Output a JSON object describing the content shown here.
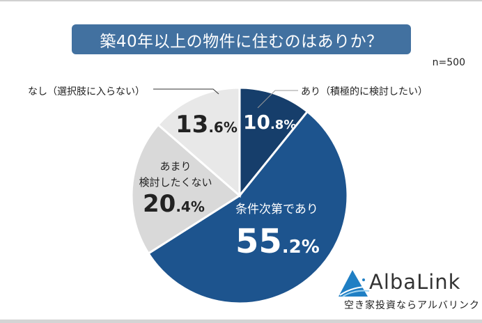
{
  "title": "築40年以上の物件に住むのはありか？",
  "sample": "n=500",
  "chart_data": {
    "type": "pie",
    "title": "築40年以上の物件に住むのはありか？",
    "note": "n=500",
    "categories": [
      "あり（積極的に検討したい）",
      "条件次第であり",
      "あまり検討したくない",
      "なし（選択肢に入らない）"
    ],
    "values": [
      10.8,
      55.2,
      20.4,
      13.6
    ],
    "colors": [
      "#163e6b",
      "#1d548e",
      "#d9d9d9",
      "#e8e8e8"
    ],
    "start_angle": "12 o'clock, clockwise",
    "legend": "none (callout labels)"
  },
  "labels": {
    "seg1_callout": "あり（積極的に検討したい）",
    "seg1_int": "10",
    "seg1_dec": ".8%",
    "seg2_name": "条件次第であり",
    "seg2_int": "55",
    "seg2_dec": ".2%",
    "seg3_name_l1": "あまり",
    "seg3_name_l2": "検討したくない",
    "seg3_int": "20",
    "seg3_dec": ".4%",
    "seg4_callout": "なし（選択肢に入らない）",
    "seg4_int": "13",
    "seg4_dec": ".6%"
  },
  "logo": {
    "name": "AlbaLink",
    "tagline": "空き家投資ならアルバリンク"
  }
}
